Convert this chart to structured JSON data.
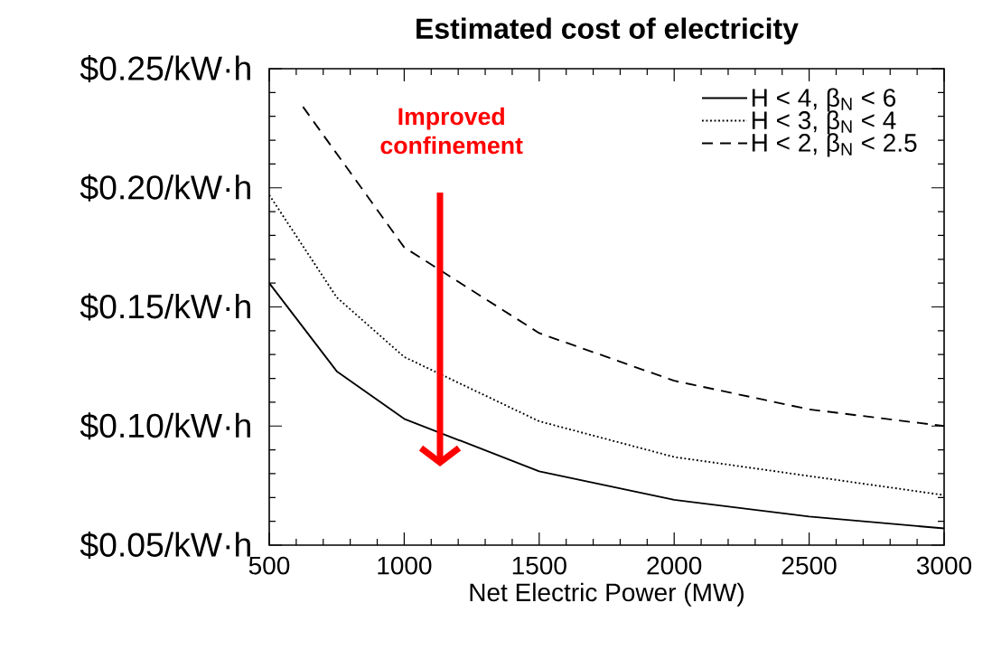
{
  "chart_data": {
    "type": "line",
    "title": "Estimated cost of electricity",
    "xlabel": "Net Electric Power (MW)",
    "x": [
      500,
      750,
      1000,
      1500,
      2000,
      2500,
      3000
    ],
    "series": [
      {
        "name": "H < 4, β$_{N}$ < 6",
        "color": "#000000",
        "line_style": "solid",
        "values": [
          0.16,
          0.123,
          0.103,
          0.081,
          0.069,
          0.062,
          0.057
        ]
      },
      {
        "name": "H < 3, β$_{N}$ < 4",
        "color": "#000000",
        "line_style": "dotted",
        "values": [
          0.197,
          0.154,
          0.129,
          0.102,
          0.087,
          0.079,
          0.071
        ]
      },
      {
        "name": "H < 2, β$_{N}$ < 2.5",
        "color": "#000000",
        "line_style": "dashed",
        "x": [
          625,
          1000,
          1500,
          2000,
          2500,
          3000
        ],
        "values": [
          0.234,
          0.175,
          0.139,
          0.119,
          0.107,
          0.1
        ]
      }
    ],
    "xlim": [
      500,
      3000
    ],
    "xticks": [
      500,
      1000,
      1500,
      2000,
      2500,
      3000
    ],
    "ylim": [
      0.05,
      0.25
    ],
    "yticks": [
      {
        "value": 0.05,
        "label": "$0.05/kW·h"
      },
      {
        "value": 0.1,
        "label": "$0.10/kW·h"
      },
      {
        "value": 0.15,
        "label": "$0.15/kW·h"
      },
      {
        "value": 0.2,
        "label": "$0.20/kW·h"
      },
      {
        "value": 0.25,
        "label": "$0.25/kW·h"
      }
    ],
    "legend": "top right",
    "grid": false,
    "marker": "none",
    "annotations": [
      "Improved confinement"
    ]
  }
}
